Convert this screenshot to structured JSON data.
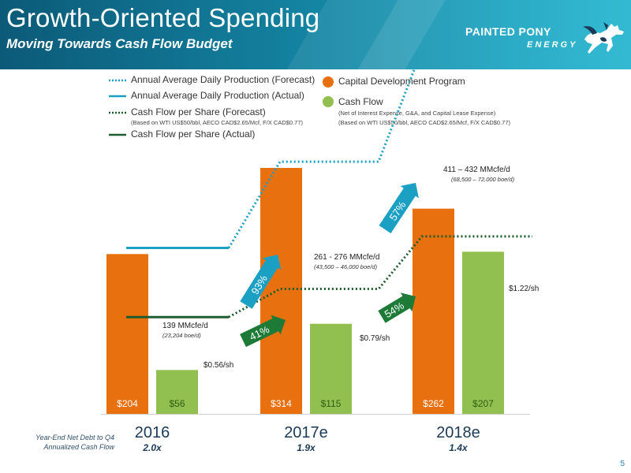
{
  "header": {
    "title": "Growth-Oriented Spending",
    "subtitle": "Moving Towards Cash Flow Budget",
    "logo_line1": "PAINTED PONY",
    "logo_line2": "ENERGY",
    "logo_icon": "horse-logo-icon"
  },
  "legend": {
    "lines": [
      {
        "label": "Annual Average Daily Production (Forecast)",
        "style": "dotted",
        "color": "#1ba0c4"
      },
      {
        "label": "Annual Average Daily Production (Actual)",
        "style": "solid",
        "color": "#1ba0c4"
      },
      {
        "label": "Cash Flow per Share (Forecast)",
        "style": "dotted",
        "color": "#1d5c2e",
        "note": "(Based on WTI US$50/bbl, AECO CAD$2.65/Mcf, F/X CAD$0.77)"
      },
      {
        "label": "Cash Flow per Share (Actual)",
        "style": "solid",
        "color": "#1d5c2e"
      }
    ],
    "bars": [
      {
        "label": "Capital Development Program",
        "color": "#e8700f"
      },
      {
        "label": "Cash Flow",
        "color": "#92c050",
        "note1": "(Net of Interest Expense, G&A, and Capital Lease Expense)",
        "note2": "(Based on WTI US$50/bbl, AECO CAD$2.65/Mcf, F/X CAD$0.77)"
      }
    ]
  },
  "chart_data": {
    "type": "bar",
    "categories": [
      "2016",
      "2017e",
      "2018e"
    ],
    "series": [
      {
        "name": "Capital Development Program",
        "values": [
          204,
          314,
          262
        ],
        "labels": [
          "$204",
          "$314",
          "$262"
        ],
        "color": "#e8700f"
      },
      {
        "name": "Cash Flow",
        "values": [
          56,
          115,
          207
        ],
        "labels": [
          "$56",
          "$115",
          "$207"
        ],
        "color": "#92c050"
      }
    ],
    "production": {
      "series_name": "Annual Average Daily Production",
      "values": [
        139,
        268.5,
        421.5
      ],
      "labels": [
        {
          "main": "139 MMcfe/d",
          "sub": "(23,204 boe/d)"
        },
        {
          "main": "261 - 276 MMcfe/d",
          "sub": "(43,500 – 46,000 boe/d)"
        },
        {
          "main": "411 – 432  MMcfe/d",
          "sub": "(68,500 – 72,000 boe/d)"
        }
      ],
      "growth": [
        "93%",
        "57%"
      ],
      "color": "#1ba0c4"
    },
    "cash_flow_per_share": {
      "series_name": "Cash Flow per Share",
      "values": [
        0.56,
        0.79,
        1.22
      ],
      "labels": [
        "$0.56/sh",
        "$0.79/sh",
        "$1.22/sh"
      ],
      "growth": [
        "41%",
        "54%"
      ],
      "color": "#1d5c2e"
    },
    "net_debt": {
      "label_line1": "Year-End Net Debt to Q4",
      "label_line2": "Annualized Cash Flow",
      "values": [
        "2.0x",
        "1.9x",
        "1.4x"
      ]
    }
  },
  "footer": {
    "page_number": "5"
  }
}
